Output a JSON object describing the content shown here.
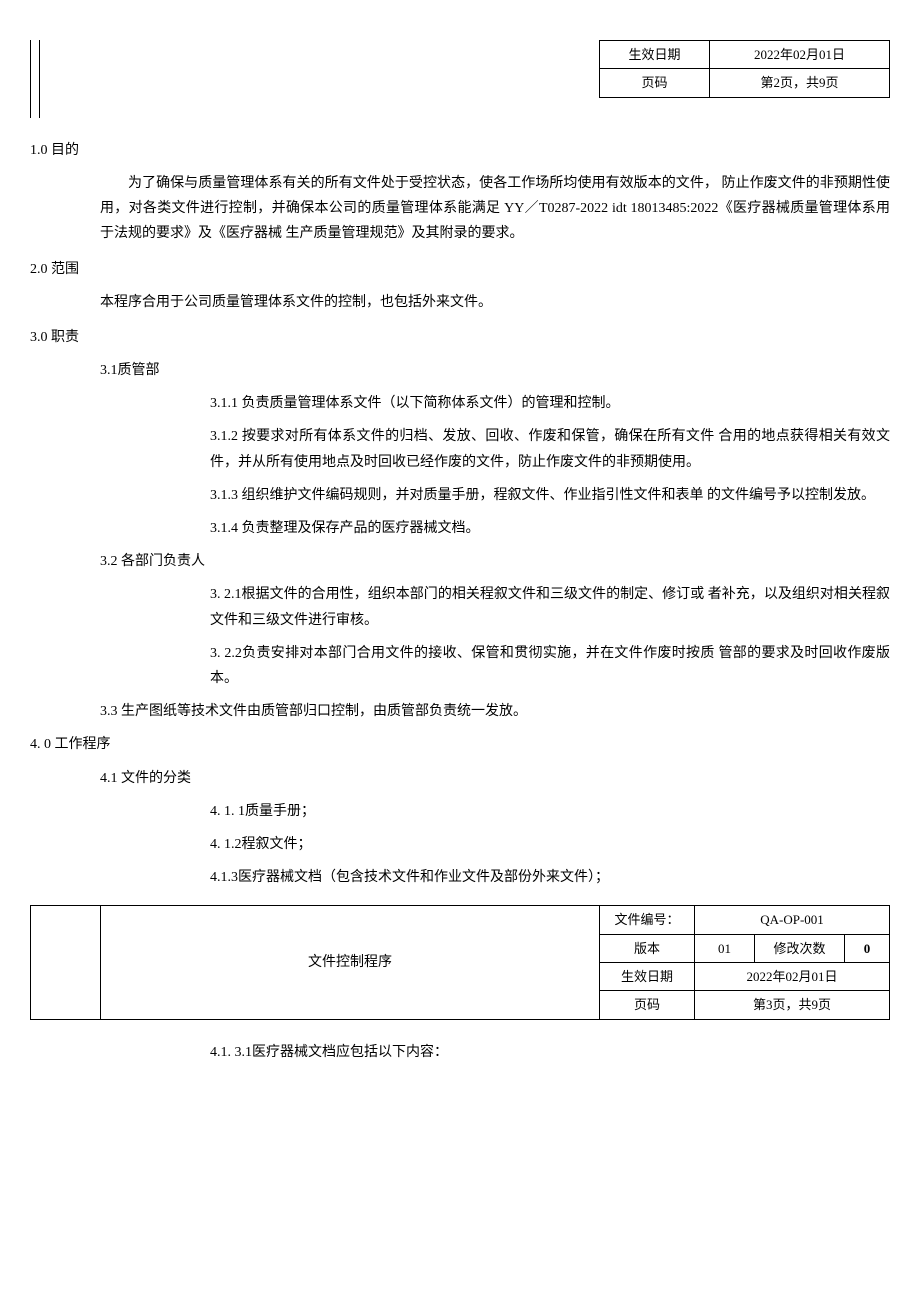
{
  "header_top": {
    "effective_date_label": "生效日期",
    "effective_date_value": "2022年02月01日",
    "page_label": "页码",
    "page_value": "第2页，共9页"
  },
  "s1": {
    "heading": "1.0 目的",
    "para": "为了确保与质量管理体系有关的所有文件处于受控状态，使各工作场所均使用有效版本的文件， 防止作废文件的非预期性使用，对各类文件进行控制，并确保本公司的质量管理体系能满足 YY／T0287-2022 idt 18013485:2022《医疗器械质量管理体系用于法规的要求》及《医疗器械 生产质量管理规范》及其附录的要求。"
  },
  "s2": {
    "heading": "2.0 范围",
    "para": "本程序合用于公司质量管理体系文件的控制，也包括外来文件。"
  },
  "s3": {
    "heading": "3.0 职责",
    "item31": "3.1质管部",
    "item311": "3.1.1  负责质量管理体系文件（以下简称体系文件）的管理和控制。",
    "item312": "3.1.2  按要求对所有体系文件的归档、发放、回收、作废和保管，确保在所有文件  合用的地点获得相关有效文件，并从所有使用地点及时回收已经作废的文件，防止作废文件的非预期使用。",
    "item313": "3.1.3  组织维护文件编码规则，并对质量手册，程叙文件、作业指引性文件和表单  的文件编号予以控制发放。",
    "item314": "3.1.4  负责整理及保存产品的医疗器械文档。",
    "item32": "3.2 各部门负责人",
    "item321": "3. 2.1根据文件的合用性，组织本部门的相关程叙文件和三级文件的制定、修订或 者补充，以及组织对相关程叙文件和三级文件进行审核。",
    "item322": "3. 2.2负责安排对本部门合用文件的接收、保管和贯彻实施，并在文件作废时按质 管部的要求及时回收作废版本。",
    "item33": "3.3 生产图纸等技术文件由质管部归口控制，由质管部负责统一发放。"
  },
  "s4": {
    "heading": "4. 0 工作程序",
    "item41": "4.1   文件的分类",
    "item411": "4. 1. 1质量手册；",
    "item412": "4. 1.2程叙文件；",
    "item413": "4.1.3医疗器械文档（包含技术文件和作业文件及部份外来文件）；"
  },
  "footer": {
    "title": "文件控制程序",
    "doc_no_label": "文件编号：",
    "doc_no_value": "QA-OP-001",
    "version_label": "版本",
    "version_value": "01",
    "rev_label": "修改次数",
    "rev_value": "0",
    "effective_date_label": "生效日期",
    "effective_date_value": "2022年02月01日",
    "page_label": "页码",
    "page_value": "第3页，共9页"
  },
  "post_footer": {
    "item4131": "4.1. 3.1医疗器械文档应包括以下内容："
  }
}
